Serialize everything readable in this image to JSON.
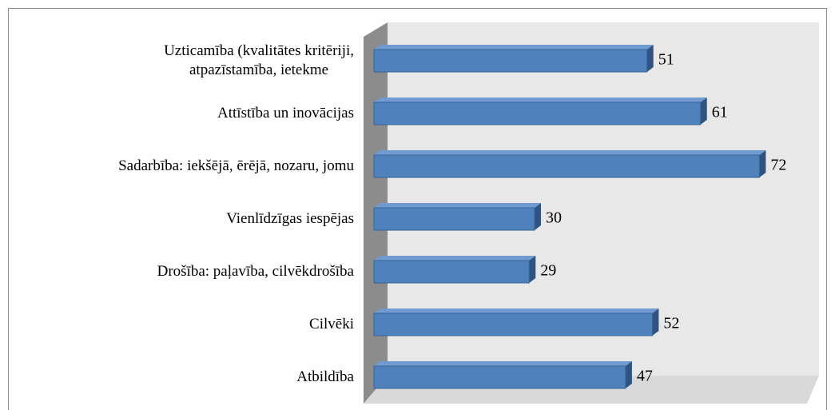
{
  "chart_data": {
    "type": "bar",
    "orientation": "horizontal",
    "categories": [
      "Uzticamība (kvalitātes kritēriji,\natpazīstamība, ietekme",
      "Attīstība un inovācijas",
      "Sadarbība: iekšējā, ērējā, nozaru, jomu",
      "Vienlīdzīgas iespējas",
      "Drošība: paļavība, cilvēkdrošība",
      "Cilvēki",
      "Atbildība"
    ],
    "values": [
      51,
      61,
      72,
      30,
      29,
      52,
      47
    ],
    "color": "#4f81bd",
    "xlim": [
      0,
      80
    ]
  }
}
